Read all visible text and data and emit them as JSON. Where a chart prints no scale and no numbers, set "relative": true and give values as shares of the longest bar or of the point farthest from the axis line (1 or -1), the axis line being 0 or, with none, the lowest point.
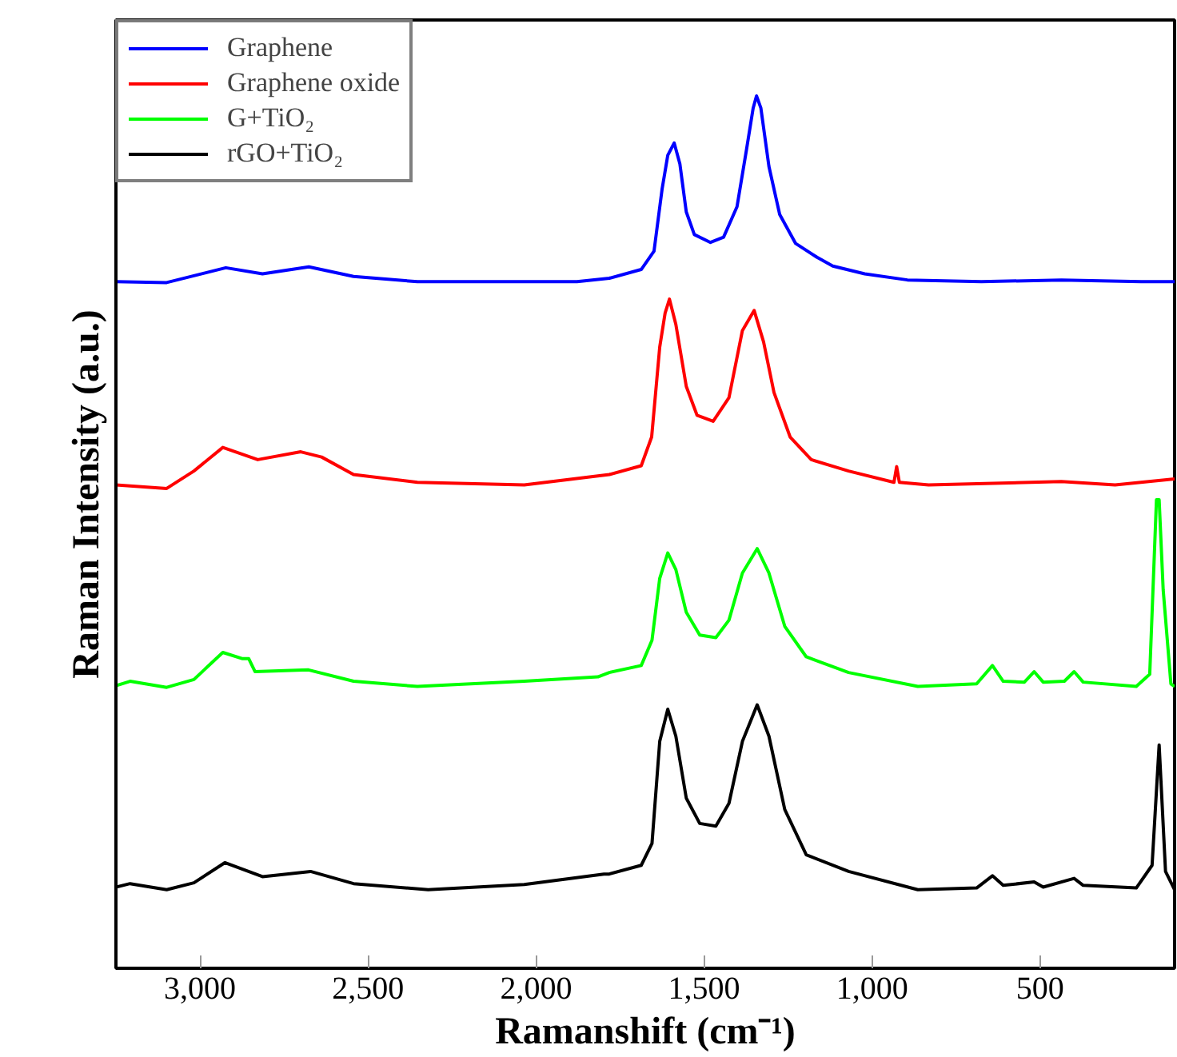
{
  "chart_data": {
    "type": "line",
    "xlabel": "Ramanshift (cm⁻¹)",
    "ylabel": "Raman Intensity (a.u.)",
    "relative": true,
    "xlim": [
      3250,
      100
    ],
    "xticks": [
      {
        "value": 3000,
        "label": "3,000"
      },
      {
        "value": 2500,
        "label": "2,500"
      },
      {
        "value": 2000,
        "label": "2,000"
      },
      {
        "value": 1500,
        "label": "1,500"
      },
      {
        "value": 1000,
        "label": "1,000"
      },
      500
    ],
    "grid": false,
    "legend": "top left",
    "marker": "none",
    "line_style": "solid",
    "series": [
      {
        "name": "Graphene",
        "color": "#0000ff",
        "x": [
          3250,
          3099,
          2923,
          2814,
          2676,
          2543,
          2353,
          2163,
          1878,
          1782,
          1687,
          1649,
          1625,
          1608,
          1589,
          1572,
          1553,
          1529,
          1481,
          1442,
          1402,
          1374,
          1354,
          1344,
          1331,
          1307,
          1275,
          1228,
          1164,
          1117,
          1022,
          895,
          675,
          437,
          200,
          100
        ],
        "values": [
          0.787,
          0.786,
          0.803,
          0.796,
          0.804,
          0.793,
          0.787,
          0.787,
          0.787,
          0.791,
          0.801,
          0.822,
          0.893,
          0.932,
          0.946,
          0.922,
          0.867,
          0.841,
          0.832,
          0.838,
          0.873,
          0.938,
          0.986,
          1,
          0.986,
          0.919,
          0.864,
          0.831,
          0.815,
          0.805,
          0.796,
          0.789,
          0.787,
          0.789,
          0.787,
          0.787
        ]
      },
      {
        "name": "Graphene oxide",
        "color": "#ff0000",
        "x": [
          3250,
          3099,
          3018,
          2932,
          2828,
          2700,
          2638,
          2543,
          2353,
          2035,
          1782,
          1687,
          1656,
          1632,
          1616,
          1603,
          1584,
          1553,
          1521,
          1473,
          1426,
          1386,
          1351,
          1323,
          1292,
          1244,
          1181,
          1070,
          935,
          927,
          919,
          832,
          437,
          277,
          100
        ],
        "values": [
          0.554,
          0.55,
          0.57,
          0.597,
          0.583,
          0.592,
          0.586,
          0.566,
          0.557,
          0.554,
          0.566,
          0.576,
          0.609,
          0.712,
          0.751,
          0.767,
          0.738,
          0.667,
          0.634,
          0.627,
          0.654,
          0.731,
          0.754,
          0.718,
          0.66,
          0.609,
          0.583,
          0.57,
          0.557,
          0.575,
          0.557,
          0.554,
          0.558,
          0.554,
          0.561
        ]
      },
      {
        "name": "G+TiO₂",
        "color": "#00ff00",
        "x": [
          3250,
          3208,
          3099,
          3018,
          2932,
          2875,
          2855,
          2836,
          2677,
          2543,
          2353,
          2035,
          1816,
          1782,
          1687,
          1655,
          1632,
          1608,
          1584,
          1553,
          1513,
          1465,
          1426,
          1386,
          1342,
          1307,
          1260,
          1196,
          1070,
          864,
          689,
          642,
          610,
          547,
          518,
          491,
          428,
          399,
          372,
          214,
          174,
          154,
          146,
          134,
          111,
          100
        ],
        "values": [
          0.324,
          0.329,
          0.322,
          0.331,
          0.362,
          0.355,
          0.355,
          0.34,
          0.342,
          0.329,
          0.323,
          0.329,
          0.334,
          0.339,
          0.347,
          0.376,
          0.447,
          0.476,
          0.457,
          0.408,
          0.382,
          0.379,
          0.399,
          0.453,
          0.481,
          0.453,
          0.392,
          0.357,
          0.339,
          0.323,
          0.326,
          0.347,
          0.329,
          0.328,
          0.34,
          0.328,
          0.329,
          0.34,
          0.328,
          0.323,
          0.337,
          0.537,
          0.537,
          0.434,
          0.326,
          0.323
        ]
      },
      {
        "name": "rGO+TiO₂",
        "color": "#000000",
        "x": [
          3250,
          3208,
          3099,
          3018,
          2926,
          2814,
          2671,
          2543,
          2321,
          2035,
          1798,
          1782,
          1687,
          1655,
          1632,
          1608,
          1584,
          1553,
          1513,
          1465,
          1426,
          1386,
          1342,
          1307,
          1260,
          1196,
          1070,
          864,
          689,
          642,
          610,
          518,
          491,
          399,
          372,
          214,
          167,
          146,
          127,
          100
        ],
        "values": [
          0.093,
          0.097,
          0.09,
          0.098,
          0.121,
          0.105,
          0.111,
          0.097,
          0.09,
          0.096,
          0.108,
          0.108,
          0.118,
          0.143,
          0.26,
          0.297,
          0.266,
          0.195,
          0.166,
          0.163,
          0.189,
          0.26,
          0.302,
          0.266,
          0.182,
          0.13,
          0.111,
          0.09,
          0.092,
          0.106,
          0.095,
          0.099,
          0.093,
          0.103,
          0.095,
          0.092,
          0.118,
          0.256,
          0.111,
          0.09
        ]
      }
    ]
  }
}
